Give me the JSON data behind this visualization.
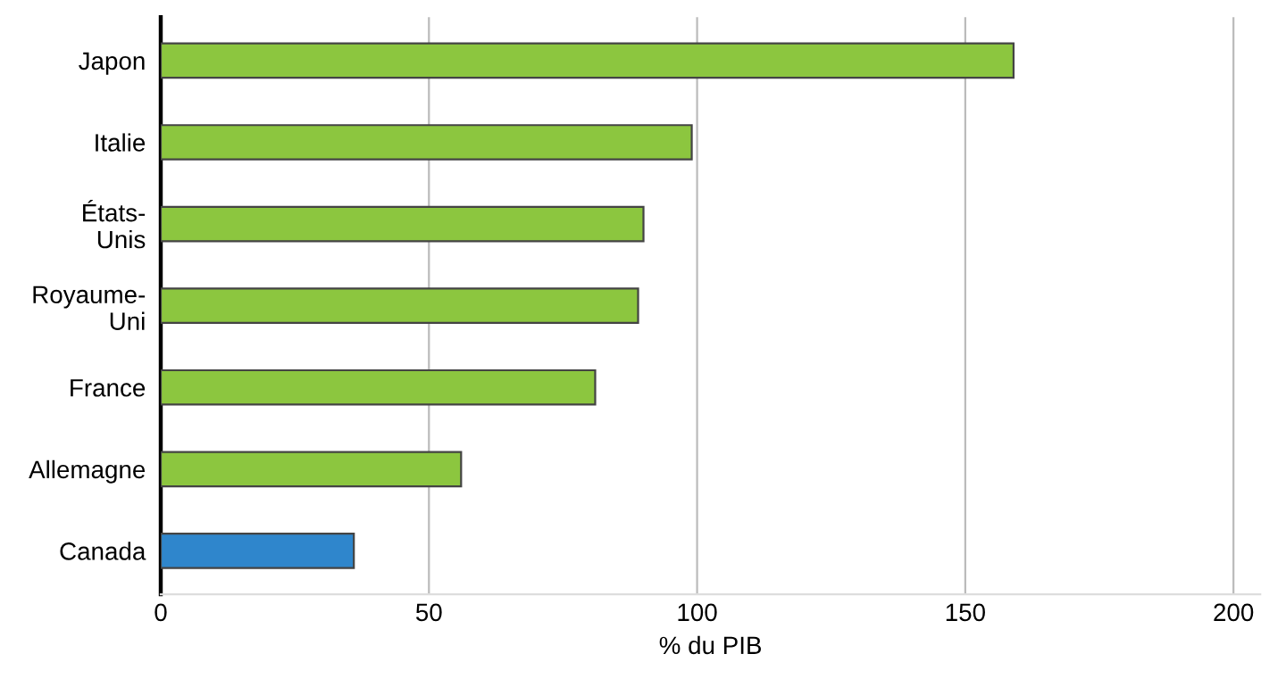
{
  "chart_data": {
    "type": "bar",
    "orientation": "horizontal",
    "xlabel": "% du PIB",
    "categories": [
      "Japon",
      "Italie",
      "États-\nUnis",
      "Royaume-\nUni",
      "France",
      "Allemagne",
      "Canada"
    ],
    "values": [
      159,
      99,
      90,
      89,
      81,
      56,
      36
    ],
    "colors": [
      "#8cc63f",
      "#8cc63f",
      "#8cc63f",
      "#8cc63f",
      "#8cc63f",
      "#8cc63f",
      "#2f86cc"
    ],
    "xlim": [
      0,
      205
    ],
    "xticks": [
      0,
      50,
      100,
      150,
      200
    ],
    "grid": "x"
  }
}
